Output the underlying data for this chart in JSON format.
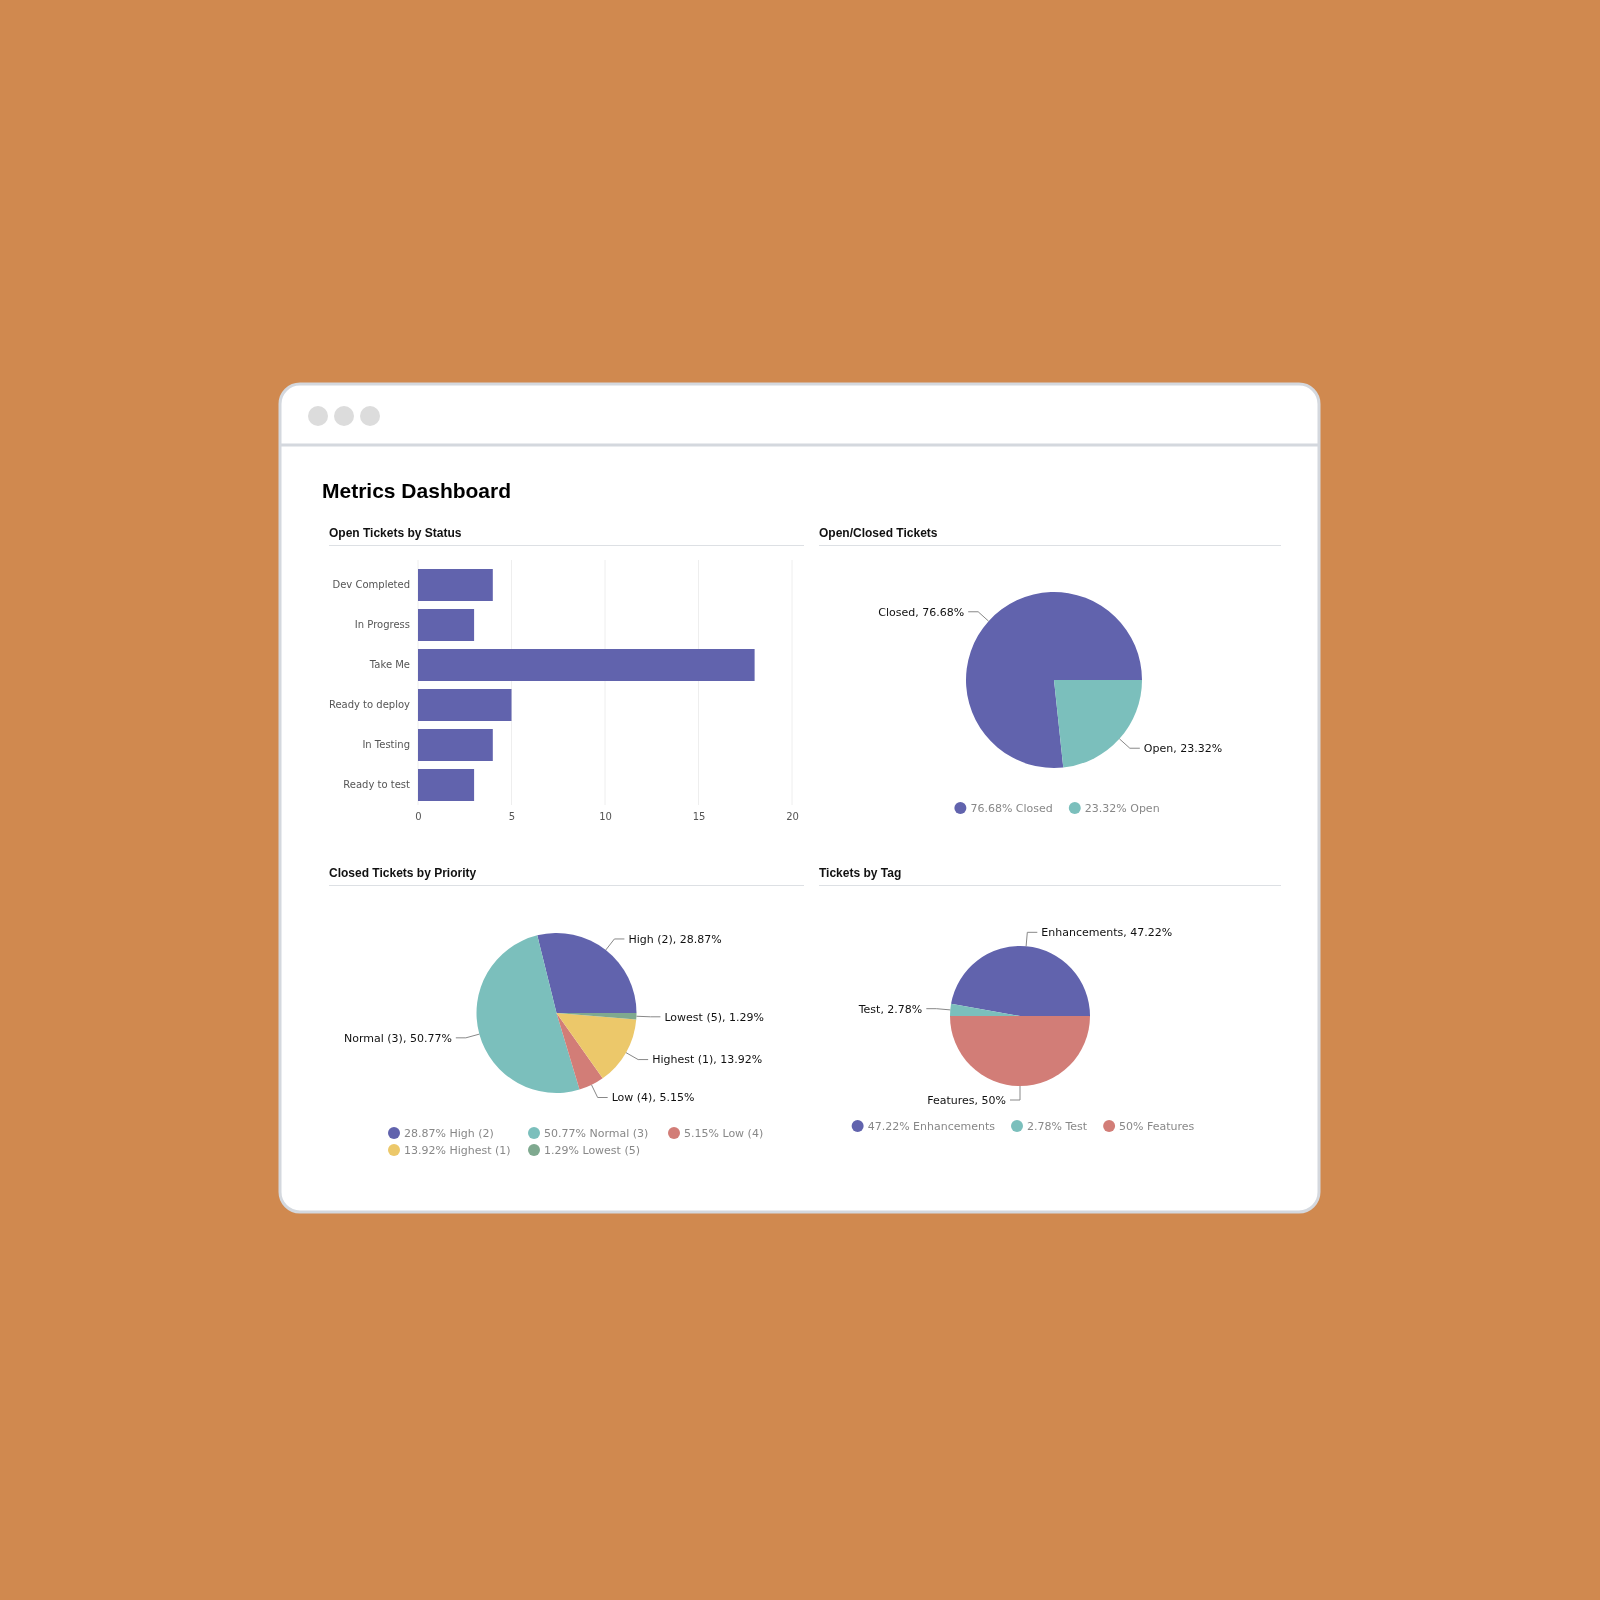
{
  "chart_data": [
    {
      "type": "bar",
      "title": "Open Tickets by Status",
      "annotations": [
        "Metrics Dashboard"
      ],
      "orientation": "horizontal",
      "categories": [
        "Dev Completed",
        "In Progress",
        "Take Me",
        "Ready to deploy",
        "In Testing",
        "Ready to test"
      ],
      "values": [
        4,
        3,
        18,
        5,
        4,
        3
      ],
      "color": "#6163ad",
      "xlim": [
        0,
        20
      ],
      "xticks": [
        0,
        5,
        10,
        15,
        20
      ],
      "grid": "x"
    },
    {
      "type": "pie",
      "title": "Open/Closed Tickets",
      "categories": [
        "Closed",
        "Open"
      ],
      "values": [
        76.68,
        23.32
      ],
      "value_labels": [
        "76.68%",
        "23.32%"
      ],
      "colors": [
        "#6163ad",
        "#7bbfbc"
      ],
      "legend": "bottom"
    },
    {
      "type": "pie",
      "title": "Closed Tickets by Priority",
      "categories": [
        "High (2)",
        "Normal (3)",
        "Low (4)",
        "Highest (1)",
        "Lowest (5)"
      ],
      "values": [
        28.87,
        50.77,
        5.15,
        13.92,
        1.29
      ],
      "value_labels": [
        "28.87%",
        "50.77%",
        "5.15%",
        "13.92%",
        "1.29%"
      ],
      "colors": [
        "#6163ad",
        "#7bbfbc",
        "#d27d77",
        "#ecc86a",
        "#7fa98f"
      ],
      "legend": "bottom"
    },
    {
      "type": "pie",
      "title": "Tickets by Tag",
      "categories": [
        "Enhancements",
        "Test",
        "Features"
      ],
      "values": [
        47.22,
        2.78,
        50
      ],
      "value_labels": [
        "47.22%",
        "2.78%",
        "50%"
      ],
      "colors": [
        "#6163ad",
        "#7bbfbc",
        "#d27d77"
      ],
      "legend": "bottom"
    }
  ]
}
